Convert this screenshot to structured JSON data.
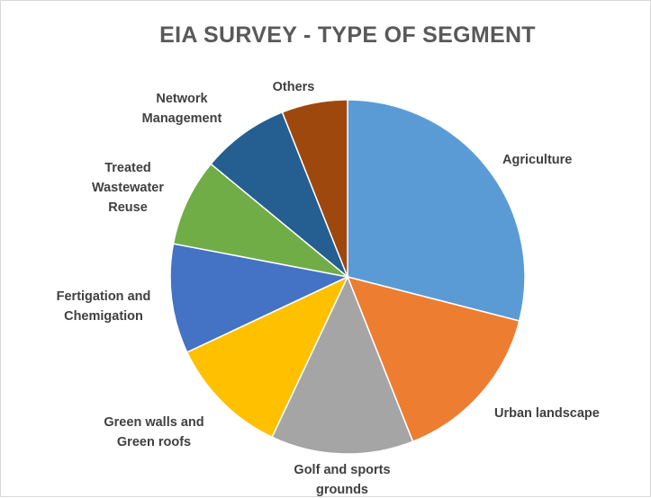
{
  "chart_data": {
    "type": "pie",
    "title": "EIA SURVEY - TYPE OF SEGMENT",
    "start_angle_deg": 0,
    "direction": "clockwise",
    "slices": [
      {
        "label": "Agriculture",
        "value": 29,
        "color": "#5b9bd5"
      },
      {
        "label": "Urban landscape",
        "value": 15,
        "color": "#ed7d31"
      },
      {
        "label": "Golf and sports grounds",
        "value": 13,
        "color": "#a5a5a5"
      },
      {
        "label": "Green walls and Green roofs",
        "value": 11,
        "color": "#ffc000"
      },
      {
        "label": "Fertigation and Chemigation",
        "value": 10,
        "color": "#4472c4"
      },
      {
        "label": "Treated Wastewater Reuse",
        "value": 8,
        "color": "#70ad47"
      },
      {
        "label": "Network Management",
        "value": 8,
        "color": "#255e91"
      },
      {
        "label": "Others",
        "value": 6,
        "color": "#9e480e"
      }
    ]
  }
}
